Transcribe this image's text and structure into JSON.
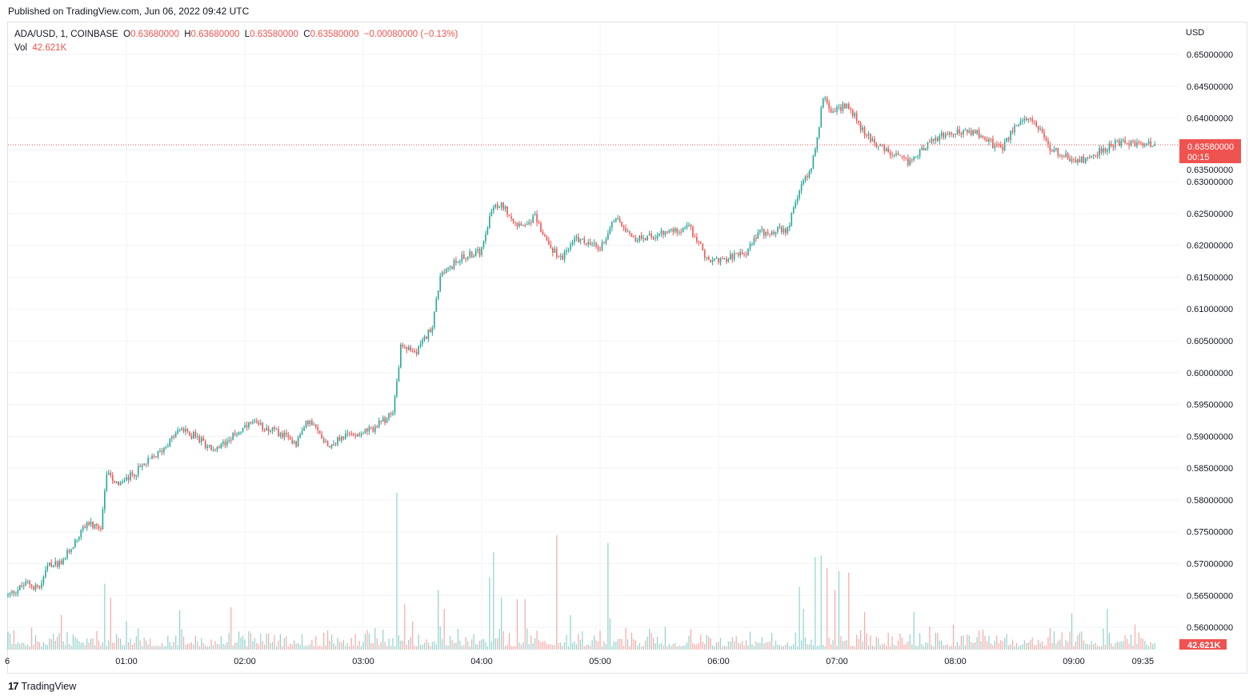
{
  "published": "Published on TradingView.com, Jun 06, 2022 09:42 UTC",
  "legend": {
    "symbol": "ADA/USD, 1, COINBASE",
    "o_label": "O",
    "o": "0.63680000",
    "h_label": "H",
    "h": "0.63680000",
    "l_label": "L",
    "l": "0.63580000",
    "c_label": "C",
    "c": "0.63580000",
    "change": "−0.00080000 (−0.13%)",
    "vol_label": "Vol",
    "vol": "42.621K"
  },
  "price_label": {
    "price": "0.63580000",
    "countdown": "00:15"
  },
  "vol_label": "42.621K",
  "currency": "USD",
  "logo_text": "TradingView",
  "colors": {
    "up": "#26a69a",
    "down": "#ef5350",
    "grid": "#f0f3fa",
    "text": "#131722"
  },
  "chart_data": {
    "type": "candlestick",
    "title": "ADA/USD, 1, COINBASE",
    "ylim": [
      0.5565,
      0.6525
    ],
    "y_ticks": [
      "0.65000000",
      "0.64500000",
      "0.64000000",
      "0.63500000",
      "0.63000000",
      "0.62500000",
      "0.62000000",
      "0.61500000",
      "0.61000000",
      "0.60500000",
      "0.60000000",
      "0.59500000",
      "0.59000000",
      "0.58500000",
      "0.58000000",
      "0.57500000",
      "0.57000000",
      "0.56500000",
      "0.56000000"
    ],
    "x_ticks": [
      {
        "t": 0,
        "label": "6"
      },
      {
        "t": 60,
        "label": "01:00"
      },
      {
        "t": 120,
        "label": "02:00"
      },
      {
        "t": 180,
        "label": "03:00"
      },
      {
        "t": 240,
        "label": "04:00"
      },
      {
        "t": 300,
        "label": "05:00"
      },
      {
        "t": 360,
        "label": "06:00"
      },
      {
        "t": 420,
        "label": "07:00"
      },
      {
        "t": 480,
        "label": "08:00"
      },
      {
        "t": 540,
        "label": "09:00"
      },
      {
        "t": 575,
        "label": "09:35"
      }
    ],
    "x_unit": "minutes since 00:00 UTC",
    "close_path": [
      [
        0,
        0.565
      ],
      [
        10,
        0.567
      ],
      [
        16,
        0.566
      ],
      [
        20,
        0.5695
      ],
      [
        28,
        0.5705
      ],
      [
        34,
        0.5735
      ],
      [
        40,
        0.5765
      ],
      [
        47,
        0.575
      ],
      [
        50,
        0.584
      ],
      [
        57,
        0.5825
      ],
      [
        65,
        0.5845
      ],
      [
        77,
        0.5875
      ],
      [
        87,
        0.591
      ],
      [
        95,
        0.59
      ],
      [
        105,
        0.5875
      ],
      [
        113,
        0.59
      ],
      [
        124,
        0.592
      ],
      [
        134,
        0.591
      ],
      [
        146,
        0.589
      ],
      [
        152,
        0.5925
      ],
      [
        163,
        0.5885
      ],
      [
        170,
        0.59
      ],
      [
        184,
        0.591
      ],
      [
        195,
        0.5935
      ],
      [
        199,
        0.604
      ],
      [
        207,
        0.603
      ],
      [
        215,
        0.6075
      ],
      [
        219,
        0.615
      ],
      [
        229,
        0.618
      ],
      [
        239,
        0.619
      ],
      [
        245,
        0.6255
      ],
      [
        250,
        0.6265
      ],
      [
        259,
        0.623
      ],
      [
        267,
        0.6245
      ],
      [
        274,
        0.62
      ],
      [
        280,
        0.618
      ],
      [
        288,
        0.621
      ],
      [
        300,
        0.6195
      ],
      [
        308,
        0.6245
      ],
      [
        318,
        0.621
      ],
      [
        328,
        0.6215
      ],
      [
        345,
        0.623
      ],
      [
        355,
        0.6175
      ],
      [
        373,
        0.6185
      ],
      [
        381,
        0.622
      ],
      [
        395,
        0.6225
      ],
      [
        401,
        0.629
      ],
      [
        407,
        0.632
      ],
      [
        411,
        0.639
      ],
      [
        413,
        0.6435
      ],
      [
        417,
        0.641
      ],
      [
        426,
        0.642
      ],
      [
        432,
        0.6385
      ],
      [
        440,
        0.636
      ],
      [
        446,
        0.6345
      ],
      [
        456,
        0.633
      ],
      [
        468,
        0.6365
      ],
      [
        480,
        0.638
      ],
      [
        492,
        0.6375
      ],
      [
        503,
        0.635
      ],
      [
        511,
        0.639
      ],
      [
        519,
        0.64
      ],
      [
        527,
        0.6355
      ],
      [
        541,
        0.633
      ],
      [
        549,
        0.634
      ],
      [
        560,
        0.636
      ],
      [
        578,
        0.636
      ],
      [
        581,
        0.6358
      ]
    ],
    "last_price": 0.6358,
    "volume_unit": "K",
    "volume_max": 1000,
    "volume_spikes": [
      [
        12,
        140
      ],
      [
        27,
        220
      ],
      [
        49,
        420
      ],
      [
        52,
        330
      ],
      [
        60,
        180
      ],
      [
        87,
        250
      ],
      [
        113,
        270
      ],
      [
        197,
        1000
      ],
      [
        201,
        290
      ],
      [
        205,
        180
      ],
      [
        218,
        380
      ],
      [
        221,
        260
      ],
      [
        244,
        460
      ],
      [
        246,
        620
      ],
      [
        250,
        330
      ],
      [
        258,
        320
      ],
      [
        262,
        320
      ],
      [
        278,
        730
      ],
      [
        285,
        220
      ],
      [
        304,
        680
      ],
      [
        305,
        200
      ],
      [
        401,
        400
      ],
      [
        403,
        260
      ],
      [
        409,
        590
      ],
      [
        412,
        600
      ],
      [
        415,
        520
      ],
      [
        419,
        380
      ],
      [
        421,
        500
      ],
      [
        426,
        490
      ],
      [
        434,
        240
      ],
      [
        459,
        240
      ],
      [
        479,
        160
      ],
      [
        539,
        230
      ],
      [
        557,
        260
      ],
      [
        571,
        160
      ]
    ],
    "last_volume": 42.621
  }
}
